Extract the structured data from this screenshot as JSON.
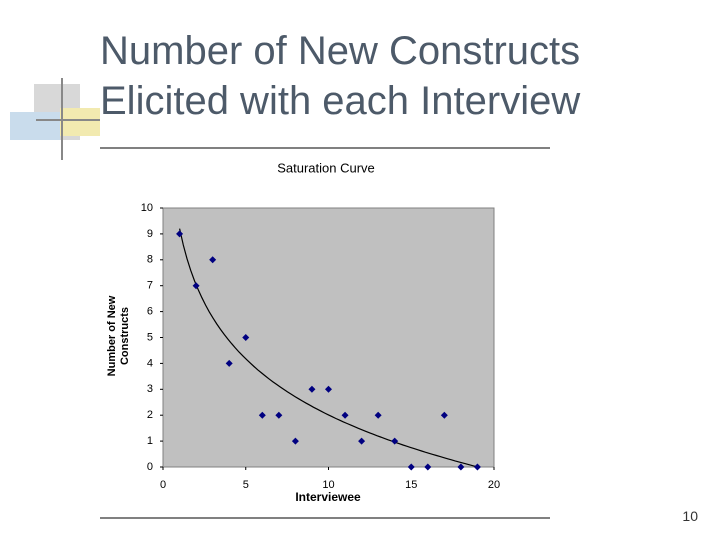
{
  "slide": {
    "title": "Number of New Constructs Elicited with each Interview",
    "page_number": "10"
  },
  "chart_data": {
    "type": "scatter",
    "title": "Saturation Curve",
    "xlabel": "Interviewee",
    "ylabel": [
      "Number of New",
      "Constructs"
    ],
    "x": [
      1,
      2,
      3,
      4,
      5,
      6,
      7,
      8,
      9,
      10,
      11,
      12,
      13,
      14,
      15,
      16,
      17,
      18,
      19
    ],
    "series": [
      {
        "color": "#000080",
        "values": [
          9,
          7,
          8,
          4,
          5,
          2,
          2,
          1,
          3,
          3,
          2,
          1,
          2,
          1,
          0,
          0,
          2,
          0,
          0
        ]
      }
    ],
    "xlim": [
      0,
      20
    ],
    "xticks": [
      0,
      5,
      10,
      15,
      20
    ],
    "ylim": [
      0,
      10
    ],
    "yticks": [
      0,
      1,
      2,
      3,
      4,
      5,
      6,
      7,
      8,
      9,
      10
    ],
    "trendline": "logarithmic",
    "plot_background": "#c0c0c0"
  }
}
